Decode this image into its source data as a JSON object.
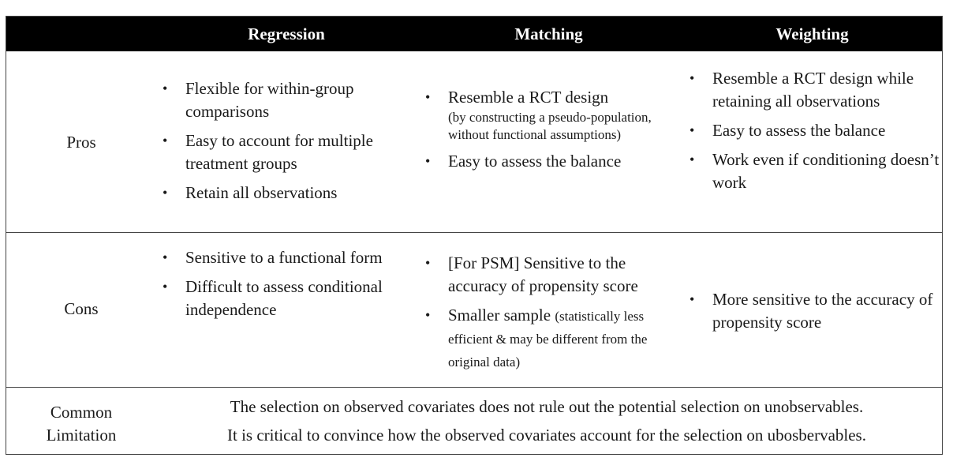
{
  "header": {
    "columns": [
      "Regression",
      "Matching",
      "Weighting"
    ]
  },
  "rows": {
    "pros": {
      "label": "Pros",
      "regression": [
        "Flexible for within-group comparisons",
        "Easy to account for multiple treatment groups",
        "Retain all observations"
      ],
      "matching": {
        "item1": "Resemble a RCT design",
        "item1_note": "(by constructing a pseudo-population, without functional assumptions)",
        "item2": "Easy to assess the balance"
      },
      "weighting": [
        "Resemble a RCT design while retaining all observations",
        "Easy to assess the balance",
        "Work even if conditioning doesn’t work"
      ]
    },
    "cons": {
      "label": "Cons",
      "regression": [
        "Sensitive to a functional form",
        "Difficult to assess conditional independence"
      ],
      "matching": {
        "item1": "[For PSM] Sensitive to the accuracy of propensity score",
        "item2": "Smaller sample",
        "item2_note": "(statistically less efficient & may be different from the original data)"
      },
      "weighting": [
        "More sensitive to the accuracy of propensity score"
      ]
    },
    "common": {
      "label_line1": "Common",
      "label_line2": "Limitation",
      "line1": "The selection on observed covariates does not rule out the potential selection on unobservables.",
      "line2": "It is critical to convince how the observed covariates account for the selection on ubosbervables."
    }
  }
}
